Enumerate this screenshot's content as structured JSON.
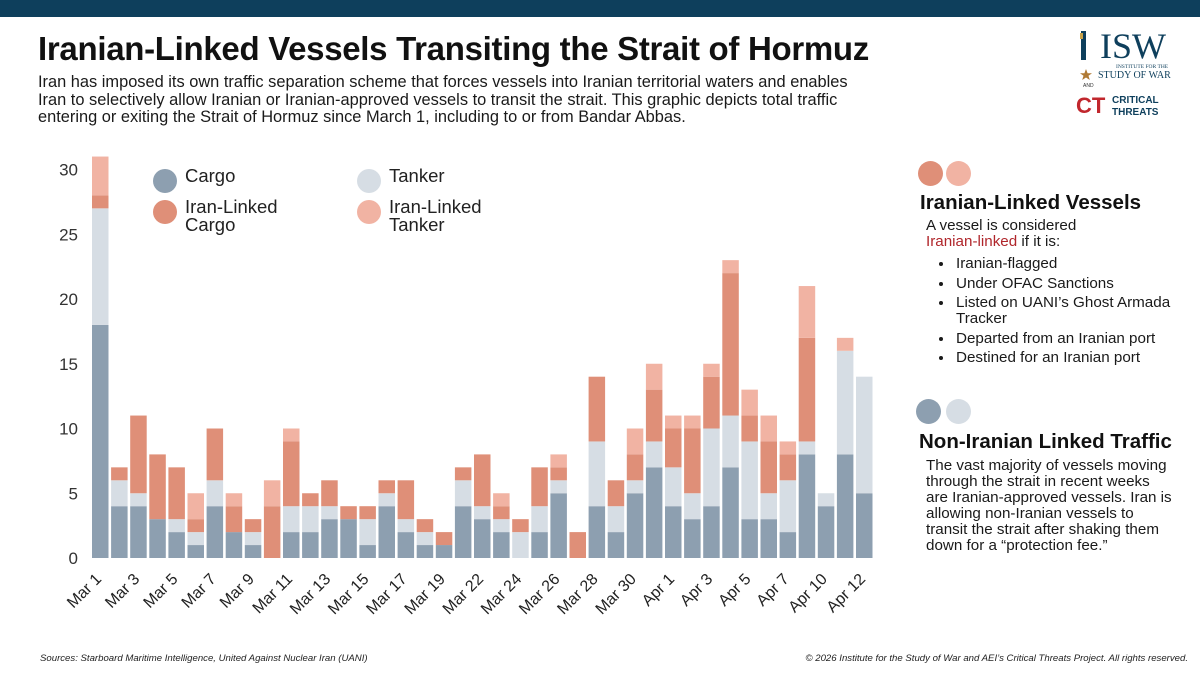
{
  "header": {
    "title": "Iranian-Linked Vessels Transiting the Strait of Hormuz",
    "subtitle": "Iran has imposed its own traffic separation scheme that forces vessels into Iranian territorial waters and enables Iran to selectively allow Iranian or Iranian-approved vessels to transit the strait. This graphic depicts total traffic entering or exiting the Strait of Hormuz since March 1, including to or from Bandar Abbas."
  },
  "logo": {
    "isw_text": "ISW",
    "isw_sub1": "INSTITUTE FOR THE",
    "isw_sub2": "STUDY OF WAR",
    "and_text": "AND",
    "ct_text": "CT",
    "ct_sub1": "CRITICAL",
    "ct_sub2": "THREATS"
  },
  "colors": {
    "cargo": "#8d9fb0",
    "tanker": "#d6dde4",
    "iran_cargo": "#df8f78",
    "iran_tanker": "#f1b3a3",
    "topbar": "#0e3f5c",
    "accent_red": "#b0262b"
  },
  "legend": {
    "cargo": "Cargo",
    "tanker": "Tanker",
    "iran_cargo": "Iran-Linked Cargo",
    "iran_tanker": "Iran-Linked Tanker"
  },
  "chart_data": {
    "type": "bar",
    "stacked": true,
    "title": "",
    "xlabel": "",
    "ylabel": "",
    "ylim": [
      0,
      31
    ],
    "yticks": [
      0,
      5,
      10,
      15,
      20,
      25,
      30
    ],
    "categories": [
      "Mar 1",
      "Mar 2",
      "Mar 3",
      "Mar 4",
      "Mar 5",
      "Mar 6",
      "Mar 7",
      "Mar 8",
      "Mar 9",
      "Mar 10",
      "Mar 11",
      "Mar 12",
      "Mar 13",
      "Mar 14",
      "Mar 15",
      "Mar 16",
      "Mar 17",
      "Mar 18",
      "Mar 19",
      "Mar 21",
      "Mar 22",
      "Mar 23",
      "Mar 24",
      "Mar 25",
      "Mar 26",
      "Mar 27",
      "Mar 28",
      "Mar 29",
      "Mar 30",
      "Mar 31",
      "Apr 1",
      "Apr 2",
      "Apr 3",
      "Apr 4",
      "Apr 5",
      "Apr 6",
      "Apr 7",
      "Apr 8",
      "Apr 10",
      "Apr 11",
      "Apr 12"
    ],
    "x_tick_labels": [
      "Mar 1",
      "",
      "Mar 3",
      "",
      "Mar 5",
      "",
      "Mar 7",
      "",
      "Mar 9",
      "",
      "Mar 11",
      "",
      "Mar 13",
      "",
      "Mar 15",
      "",
      "Mar 17",
      "",
      "Mar 19",
      "",
      "Mar 22",
      "",
      "Mar 24",
      "",
      "Mar 26",
      "",
      "Mar 28",
      "",
      "Mar 30",
      "",
      "Apr 1",
      "",
      "Apr 3",
      "",
      "Apr 5",
      "",
      "Apr 7",
      "",
      "Apr 10",
      "",
      "Apr 12"
    ],
    "series": [
      {
        "name": "Cargo",
        "values": [
          18,
          4,
          4,
          3,
          2,
          1,
          4,
          2,
          1,
          0,
          2,
          2,
          3,
          3,
          1,
          4,
          2,
          1,
          1,
          4,
          3,
          2,
          0,
          2,
          5,
          0,
          4,
          2,
          5,
          7,
          4,
          3,
          4,
          7,
          3,
          3,
          2,
          8,
          4,
          8,
          5
        ]
      },
      {
        "name": "Tanker",
        "values": [
          9,
          2,
          1,
          0,
          1,
          1,
          2,
          0,
          1,
          0,
          2,
          2,
          1,
          0,
          2,
          1,
          1,
          1,
          0,
          2,
          1,
          1,
          2,
          2,
          1,
          0,
          5,
          2,
          1,
          2,
          3,
          2,
          6,
          4,
          6,
          2,
          4,
          1,
          1,
          8,
          9
        ]
      },
      {
        "name": "Iran-Linked Cargo",
        "values": [
          1,
          1,
          6,
          5,
          4,
          1,
          4,
          2,
          1,
          4,
          5,
          1,
          2,
          1,
          1,
          1,
          3,
          1,
          1,
          1,
          4,
          1,
          1,
          3,
          1,
          2,
          5,
          2,
          2,
          4,
          3,
          5,
          4,
          11,
          2,
          4,
          2,
          8,
          0,
          0,
          0
        ]
      },
      {
        "name": "Iran-Linked Tanker",
        "values": [
          3,
          0,
          0,
          0,
          0,
          2,
          0,
          1,
          0,
          2,
          1,
          0,
          0,
          0,
          0,
          0,
          0,
          0,
          0,
          0,
          0,
          1,
          0,
          0,
          1,
          0,
          0,
          0,
          2,
          2,
          1,
          1,
          1,
          1,
          2,
          2,
          1,
          4,
          0,
          1,
          0
        ]
      }
    ]
  },
  "side": {
    "iranian": {
      "heading": "Iranian-Linked Vessels",
      "intro": "A vessel is considered",
      "intro_red": "Iranian-linked",
      "intro_end": " if it is:",
      "criteria": [
        "Iranian-flagged",
        "Under OFAC Sanctions",
        "Listed on UANI’s Ghost Armada Tracker",
        "Departed from an Iranian port",
        "Destined for an Iranian port"
      ]
    },
    "non_iranian": {
      "heading": "Non-Iranian Linked Traffic",
      "body": "The vast majority of vessels moving through the strait in recent weeks are Iranian-approved vessels. Iran is allowing non-Iranian vessels to transit the strait after shaking them down for a “protection fee.”"
    }
  },
  "footer": {
    "sources": "Sources: Starboard Maritime Intelligence, United Against Nuclear Iran (UANI)",
    "copyright": "© 2026 Institute for the Study of War and AEI’s Critical Threats Project. All rights reserved."
  }
}
